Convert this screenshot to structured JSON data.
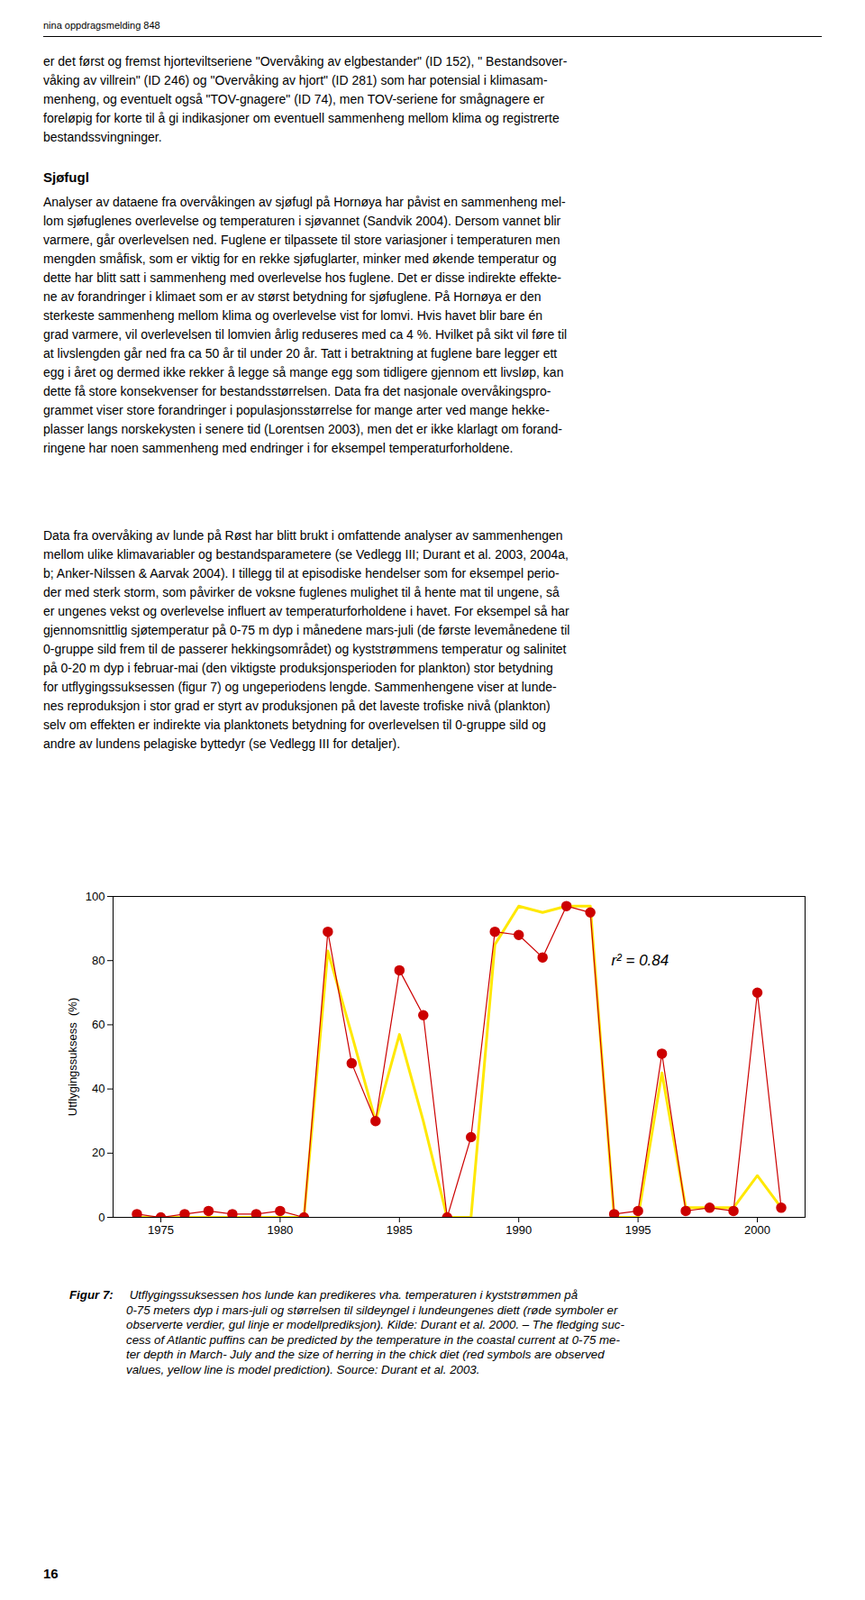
{
  "chart_data": {
    "type": "line",
    "x": [
      1974,
      1975,
      1976,
      1977,
      1978,
      1979,
      1980,
      1981,
      1982,
      1983,
      1984,
      1985,
      1986,
      1987,
      1988,
      1989,
      1990,
      1991,
      1992,
      1993,
      1994,
      1995,
      1996,
      1997,
      1998,
      1999,
      2000,
      2001
    ],
    "series": [
      {
        "type": "line",
        "color": "#FFE800",
        "line_style": "solid",
        "values": [
          0,
          0,
          0,
          0,
          0,
          0,
          0,
          0,
          83,
          57,
          30,
          57,
          30,
          0,
          0,
          85,
          97,
          95,
          97,
          97,
          0,
          0,
          45,
          3,
          3,
          3,
          13,
          3
        ]
      },
      {
        "type": "line",
        "color": "#CC0000",
        "line_style": "solid",
        "marker": "circle",
        "values": [
          1,
          0,
          1,
          2,
          1,
          1,
          2,
          0,
          89,
          48,
          30,
          77,
          63,
          0,
          25,
          89,
          88,
          81,
          97,
          95,
          1,
          2,
          51,
          2,
          3,
          2,
          70,
          3
        ]
      }
    ],
    "ylabel": "Utflygingssuksess  (%)",
    "xlim": [
      1973,
      2002
    ],
    "ylim": [
      0,
      100
    ],
    "xticks": [
      1975,
      1980,
      1985,
      1990,
      1995,
      2000
    ],
    "yticks": [
      0,
      20,
      40,
      60,
      80,
      100
    ],
    "grid": false,
    "annotations": [
      "r² = 0.84"
    ],
    "caption_label": "Figur 7:",
    "caption": " Utflygingssuksessen hos lunde kan predikeres vha. temperaturen i kyststrømmen på\n0-75 meters dyp i mars-juli og størrelsen til sildeyngel i lundeungenes diett (røde symboler er\nobserverte verdier, gul linje er modellprediksjon). Kilde: Durant et al. 2000. – The fledging suc-\ncess of Atlantic puffins can be predicted by the temperature in the coastal current at 0-75 me-\nter depth in March- July and the size of herring in the chick diet (red symbols are observed\nvalues, yellow line is model prediction). Source: Durant et al. 2003.",
    "page_header": "nina oppdragsmelding 848",
    "page_text": [
      "er det først og fremst hjorteviltseriene \"Overvåking av elgbestander\" (ID 152), \" Bestandsover-\nvåking av villrein\" (ID 246) og \"Overvåking av hjort\" (ID 281) som har potensial i klimasam-\nmenheng, og eventuelt også \"TOV-gnagere\" (ID 74), men TOV-seriene for smågnagere er\nforeløpig for korte til å gi indikasjoner om eventuell sammenheng mellom klima og registrerte\nbestandssvingninger.",
      "Sjøfugl",
      "Analyser av dataene fra overvåkingen av sjøfugl på Hornøya har påvist en sammenheng mel-\nlom sjøfuglenes overlevelse og temperaturen i sjøvannet (Sandvik 2004). Dersom vannet blir\nvarmere, går overlevelsen ned. Fuglene er tilpassete til store variasjoner i temperaturen men\nmengden småfisk, som er viktig for en rekke sjøfuglarter, minker med økende temperatur og\ndette har blitt satt i sammenheng med overlevelse hos fuglene. Det er disse indirekte effekte-\nne av forandringer i klimaet som er av størst betydning for sjøfuglene. På Hornøya er den\nsterkeste sammenheng mellom klima og overlevelse vist for lomvi. Hvis havet blir bare én\ngrad varmere, vil overlevelsen til lomvien årlig reduseres med ca 4 %. Hvilket på sikt vil føre til\nat livslengden går ned fra ca 50 år til under 20 år. Tatt i betraktning at fuglene bare legger ett\negg i året og dermed ikke rekker å legge så mange egg som tidligere gjennom ett livsløp, kan\ndette få store konsekvenser for bestandsstørrelsen. Data fra det nasjonale overvåkingspro-\ngrammet viser store forandringer i populasjonsstørrelse for mange arter ved mange hekke-\nplasser langs norskekysten i senere tid (Lorentsen 2003), men det er ikke klarlagt om forand-\nringene har noen sammenheng med endringer i for eksempel temperaturforholdene.",
      "Data fra overvåking av lunde på Røst har blitt brukt i omfattende analyser av sammenhengen\nmellom ulike klimavariabler og bestandsparametere (se Vedlegg III; Durant et al. 2003, 2004a,\nb; Anker-Nilssen & Aarvak 2004). I tillegg til at episodiske hendelser som for eksempel perio-\nder med sterk storm, som påvirker de voksne fuglenes mulighet til å hente mat til ungene, så\ner ungenes vekst og overlevelse influert av temperaturforholdene i havet. For eksempel så har\ngjennomsnittlig sjøtemperatur på 0-75 m dyp i månedene mars-juli (de første levemånedene til\n0-gruppe sild frem til de passerer hekkingsområdet) og kyststrømmens temperatur og salinitet\npå 0-20 m dyp i februar-mai (den viktigste produksjonsperioden for plankton) stor betydning\nfor utflygingssuksessen (figur 7) og ungeperiodens lengde. Sammenhengene viser at lunde-\nnes reproduksjon i stor grad er styrt av produksjonen på det laveste trofiske nivå (plankton)\nselv om effekten er indirekte via planktonets betydning for overlevelsen til 0-gruppe sild og\nandre av lundens pelagiske byttedyr (se Vedlegg III for detaljer)."
    ],
    "page_number": "16"
  }
}
